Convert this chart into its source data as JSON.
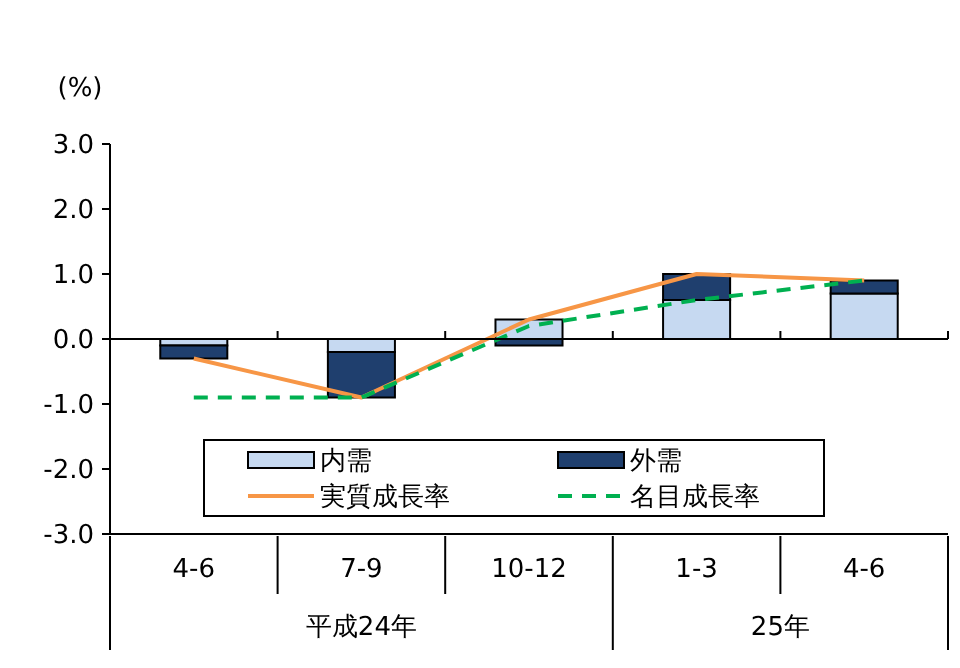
{
  "chart_data": {
    "type": "bar",
    "stacked": true,
    "ylabel": "(%)",
    "categories": [
      "4-6",
      "7-9",
      "10-12",
      "1-3",
      "4-6"
    ],
    "series": [
      {
        "name": "内需",
        "type": "bar",
        "color": "#c6d9f1",
        "values": [
          -0.1,
          -0.2,
          0.3,
          0.6,
          0.7
        ]
      },
      {
        "name": "外需",
        "type": "bar",
        "color": "#1f3f6e",
        "values": [
          -0.2,
          -0.7,
          -0.1,
          0.4,
          0.2
        ]
      },
      {
        "name": "実質成長率",
        "type": "line",
        "color": "#f79646",
        "line_style": "solid",
        "values": [
          -0.3,
          -0.9,
          0.3,
          1.0,
          0.9
        ]
      },
      {
        "name": "名目成長率",
        "type": "line",
        "color": "#00b050",
        "line_style": "dashed",
        "values": [
          -0.9,
          -0.9,
          0.2,
          0.6,
          0.9
        ]
      }
    ],
    "ylim": [
      -3,
      3
    ],
    "yticks": [
      {
        "value": -3,
        "label": "-3.0"
      },
      {
        "value": -2,
        "label": "-2.0"
      },
      {
        "value": -1,
        "label": "-1.0"
      },
      {
        "value": 0,
        "label": "0.0"
      },
      {
        "value": 1,
        "label": "1.0"
      },
      {
        "value": 2,
        "label": "2.0"
      },
      {
        "value": 3,
        "label": "3.0"
      }
    ],
    "annotations": [
      "平成24年",
      "25年"
    ],
    "ref_lines": [
      {
        "axis": "y",
        "value": 0,
        "color": "#000000"
      }
    ],
    "legend": "bottom",
    "grid": false
  }
}
